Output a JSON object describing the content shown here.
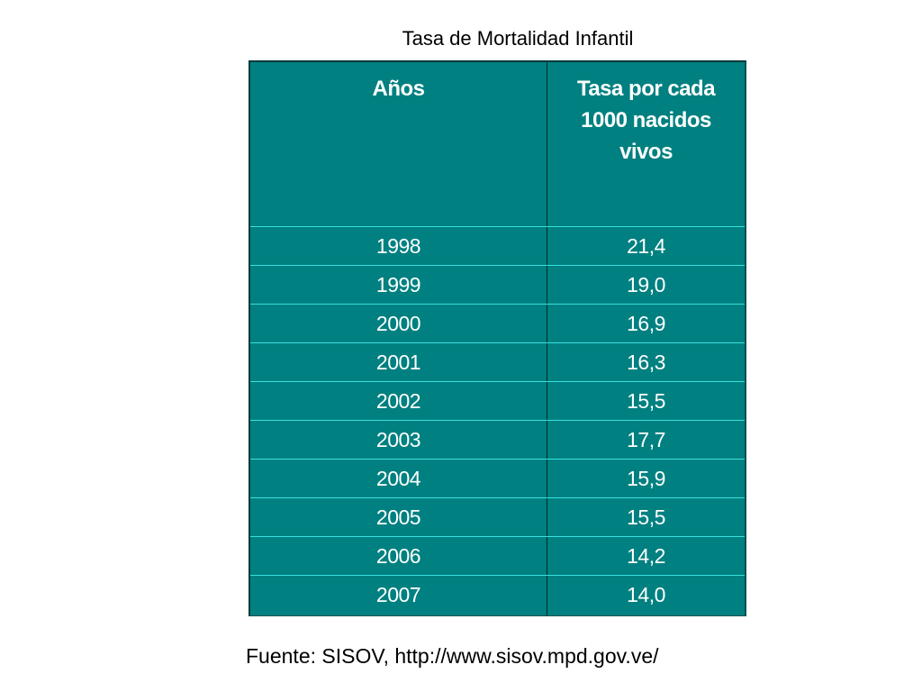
{
  "title": "Tasa de Mortalidad Infantil",
  "table": {
    "headers": [
      "Años",
      "Tasa por cada\n1000 nacidos\nvivos"
    ],
    "rows": [
      {
        "year": "1998",
        "rate": "21,4"
      },
      {
        "year": "1999",
        "rate": "19,0"
      },
      {
        "year": "2000",
        "rate": "16,9"
      },
      {
        "year": "2001",
        "rate": "16,3"
      },
      {
        "year": "2002",
        "rate": "15,5"
      },
      {
        "year": "2003",
        "rate": "17,7"
      },
      {
        "year": "2004",
        "rate": "15,9"
      },
      {
        "year": "2005",
        "rate": "15,5"
      },
      {
        "year": "2006",
        "rate": "14,2"
      },
      {
        "year": "2007",
        "rate": "14,0"
      }
    ]
  },
  "source": "Fuente: SISOV, http://www.sisov.mpd.gov.ve/",
  "colors": {
    "table_background": "#008080",
    "row_separator": "#38e0e0",
    "text": "#ffffff"
  }
}
